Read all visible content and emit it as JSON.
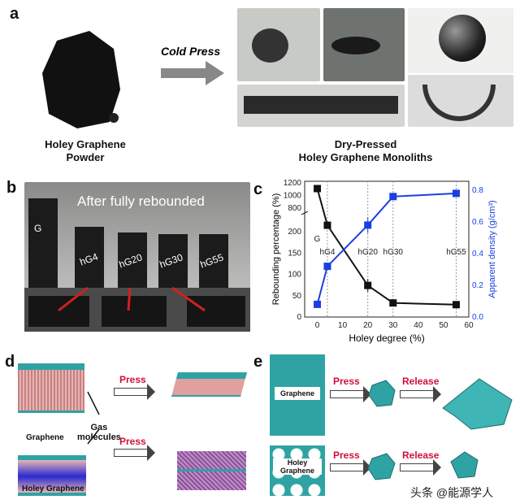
{
  "panel_a": {
    "label": "a",
    "arrow_text": "Cold Press",
    "left_caption": [
      "Holey Graphene",
      "Powder"
    ],
    "right_caption": [
      "Dry-Pressed",
      "Holey Graphene Monoliths"
    ]
  },
  "panel_b": {
    "label": "b",
    "title": "After fully rebounded",
    "samples": [
      "G",
      "hG4",
      "hG20",
      "hG30",
      "hG55"
    ]
  },
  "panel_d": {
    "label": "d",
    "press": "Press",
    "graphene": "Graphene",
    "holey": "Holey Graphene",
    "gas": [
      "Gas",
      "molecules"
    ]
  },
  "panel_e": {
    "label": "e",
    "press": "Press",
    "release": "Release",
    "graphene": "Graphene",
    "holey": [
      "Holey",
      "Graphene"
    ]
  },
  "watermark": "头条 @能源学人",
  "colors": {
    "black_series": "#111111",
    "blue_series": "#1a3fe0",
    "teal": "#2fa3a3"
  },
  "chart_data": {
    "label": "c",
    "type": "line",
    "xlabel": "Holey degree (%)",
    "ylabel": "Rebounding percentage (%)",
    "y2label": "Apparent density (g/cm³)",
    "xlim": [
      -5,
      60
    ],
    "xticks": [
      "0",
      "10",
      "20",
      "30",
      "40",
      "50",
      "60"
    ],
    "yticks_lower": [
      "0",
      "50",
      "100",
      "150",
      "200"
    ],
    "yticks_upper": [
      "800",
      "1000",
      "1200"
    ],
    "y2ticks": [
      "0.0",
      "0.2",
      "0.4",
      "0.6",
      "0.8"
    ],
    "y2lim": [
      0,
      0.8
    ],
    "vlines": [
      {
        "x": 4,
        "label": "hG4"
      },
      {
        "x": 20,
        "label": "hG20"
      },
      {
        "x": 30,
        "label": "hG30"
      },
      {
        "x": 55,
        "label": "hG55"
      }
    ],
    "g_label": "G",
    "series": [
      {
        "name": "Rebounding percentage",
        "axis": "left",
        "x": [
          0,
          4,
          20,
          30,
          55
        ],
        "y": [
          1110,
          215,
          74,
          33,
          29
        ],
        "err": [
          30,
          8,
          15,
          4,
          3
        ]
      },
      {
        "name": "Apparent density",
        "axis": "right",
        "x": [
          0,
          4,
          20,
          30,
          55
        ],
        "y": [
          0.08,
          0.32,
          0.58,
          0.76,
          0.78
        ],
        "err": [
          0.01,
          0.01,
          0.05,
          0.015,
          0.015
        ]
      }
    ]
  }
}
